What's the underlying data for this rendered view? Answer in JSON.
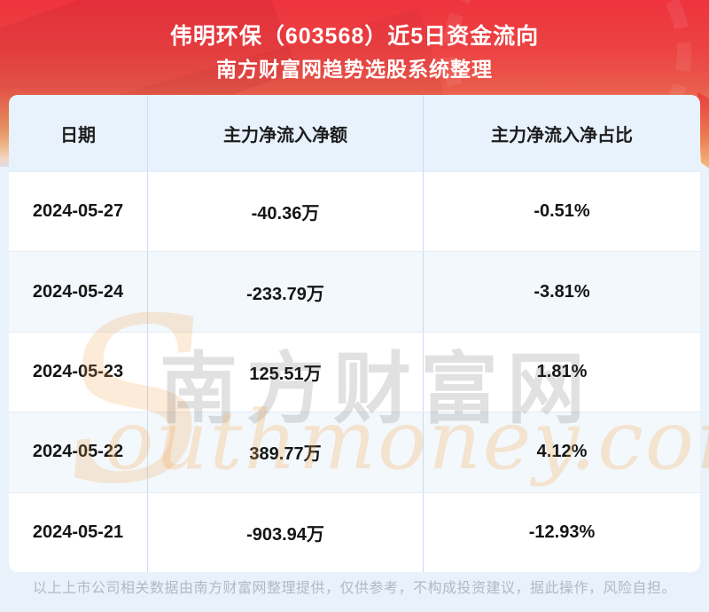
{
  "header": {
    "title": "伟明环保（603568）近5日资金流向",
    "subtitle": "南方财富网趋势选股系统整理"
  },
  "table": {
    "columns": [
      {
        "key": "date",
        "label": "日期"
      },
      {
        "key": "amount",
        "label": "主力净流入净额"
      },
      {
        "key": "ratio",
        "label": "主力净流入净占比"
      }
    ],
    "rows": [
      {
        "date": "2024-05-27",
        "amount": "-40.36万",
        "ratio": "-0.51%"
      },
      {
        "date": "2024-05-24",
        "amount": "-233.79万",
        "ratio": "-3.81%"
      },
      {
        "date": "2024-05-23",
        "amount": "125.51万",
        "ratio": "1.81%"
      },
      {
        "date": "2024-05-22",
        "amount": "389.77万",
        "ratio": "4.12%"
      },
      {
        "date": "2024-05-21",
        "amount": "-903.94万",
        "ratio": "-12.93%"
      }
    ]
  },
  "watermark": {
    "swoosh": "S",
    "cn": "南方财富网",
    "en": "outhmoney.com"
  },
  "footer": {
    "disclaimer": "以上上市公司相关数据由南方财富网整理提供，仅供参考，不构成投资建议，据此操作，风险自担。"
  },
  "colors": {
    "banner_red": "#ee333e",
    "banner_orange": "#f0a26b",
    "banner_cream": "#fdeed5",
    "page_bg": "#e9f2fa",
    "table_header_bg": "#e8f2fd",
    "row_alt_bg": "#f3f8fc",
    "cell_border": "#c9dcf2",
    "text": "#151515",
    "footer_text": "#b1bac2",
    "watermark_orange": "#f3a64d"
  },
  "chart_data": {
    "type": "table",
    "title": "伟明环保（603568）近5日资金流向",
    "subtitle": "南方财富网趋势选股系统整理",
    "columns": [
      "日期",
      "主力净流入净额",
      "主力净流入净占比"
    ],
    "rows": [
      [
        "2024-05-27",
        "-40.36万",
        "-0.51%"
      ],
      [
        "2024-05-24",
        "-233.79万",
        "-3.81%"
      ],
      [
        "2024-05-23",
        "125.51万",
        "1.81%"
      ],
      [
        "2024-05-22",
        "389.77万",
        "4.12%"
      ],
      [
        "2024-05-21",
        "-903.94万",
        "-12.93%"
      ]
    ],
    "main_net_inflow_wan": [
      -40.36,
      -233.79,
      125.51,
      389.77,
      -903.94
    ],
    "main_net_inflow_ratio_pct": [
      -0.51,
      -3.81,
      1.81,
      4.12,
      -12.93
    ]
  }
}
